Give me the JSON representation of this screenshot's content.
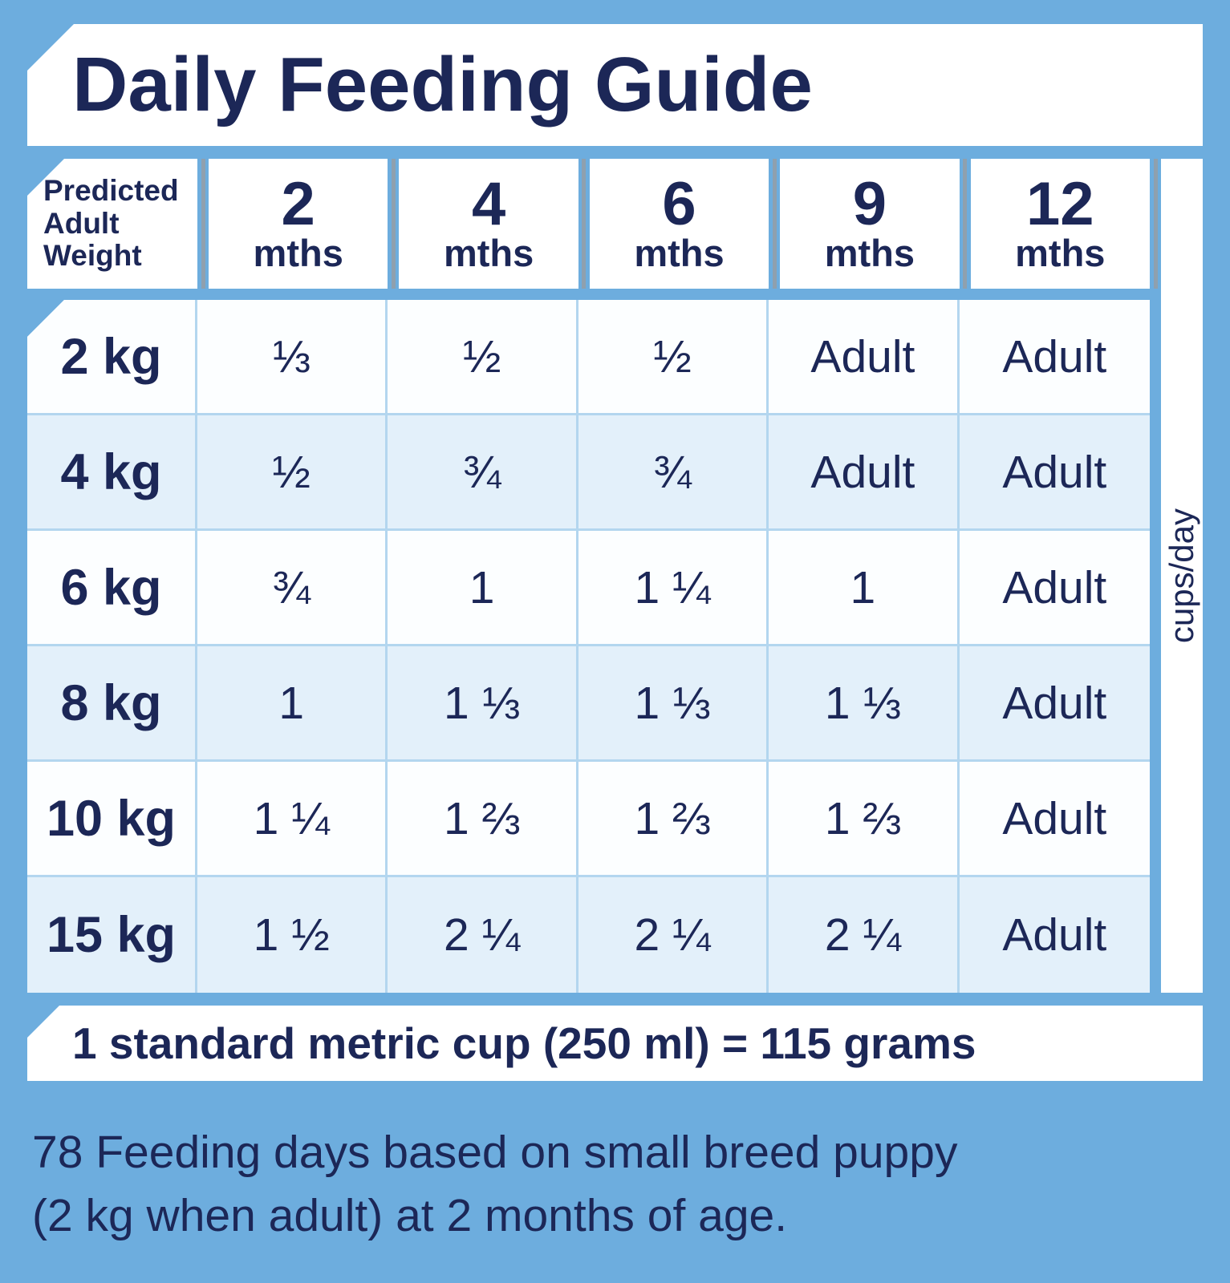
{
  "chart_data": {
    "type": "table",
    "title": "Daily Feeding Guide",
    "corner_header": "Predicted Adult Weight",
    "unit_label": "cups/day",
    "columns": [
      {
        "age": "2",
        "unit": "mths"
      },
      {
        "age": "4",
        "unit": "mths"
      },
      {
        "age": "6",
        "unit": "mths"
      },
      {
        "age": "9",
        "unit": "mths"
      },
      {
        "age": "12",
        "unit": "mths"
      }
    ],
    "rows": [
      {
        "weight": "2 kg",
        "values": [
          "⅓",
          "½",
          "½",
          "Adult",
          "Adult"
        ]
      },
      {
        "weight": "4 kg",
        "values": [
          "½",
          "¾",
          "¾",
          "Adult",
          "Adult"
        ]
      },
      {
        "weight": "6 kg",
        "values": [
          "¾",
          "1",
          "1 ¼",
          "1",
          "Adult"
        ]
      },
      {
        "weight": "8 kg",
        "values": [
          "1",
          "1 ⅓",
          "1 ⅓",
          "1 ⅓",
          "Adult"
        ]
      },
      {
        "weight": "10 kg",
        "values": [
          "1 ¼",
          "1 ⅔",
          "1 ⅔",
          "1 ⅔",
          "Adult"
        ]
      },
      {
        "weight": "15 kg",
        "values": [
          "1 ½",
          "2 ¼",
          "2 ¼",
          "2 ¼",
          "Adult"
        ]
      }
    ],
    "note": "1 standard metric cup (250 ml) = 115 grams"
  },
  "footer": {
    "line1": "78 Feeding days based on small breed puppy",
    "line2": "(2 kg when adult) at 2 months of age."
  },
  "colors": {
    "background": "#6dadde",
    "text_navy": "#1c2757",
    "row_tint": "#e3f0fa",
    "gridline": "#b3d6ef"
  }
}
